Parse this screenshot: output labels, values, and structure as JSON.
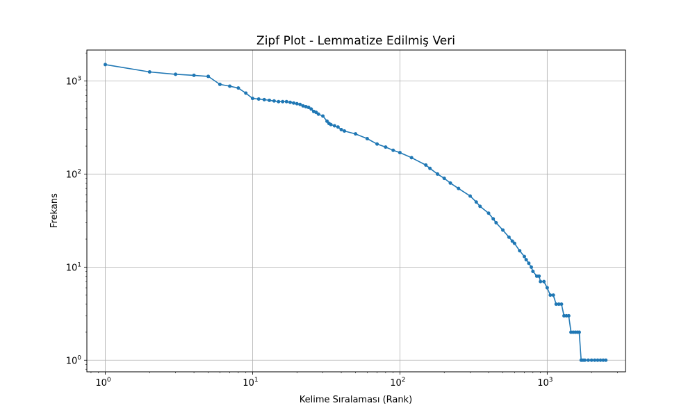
{
  "chart_data": {
    "type": "line",
    "title": "Zipf Plot - Lemmatize Edilmiş Veri",
    "xlabel": "Kelime Sıralaması (Rank)",
    "ylabel": "Frekans",
    "x_scale": "log",
    "y_scale": "log",
    "xlim": [
      0.75,
      3400
    ],
    "ylim": [
      0.75,
      2150
    ],
    "grid": true,
    "marker": "circle",
    "color": "#1f77b4",
    "x_ticks": [
      {
        "value": 1,
        "base": "10",
        "exp": "0"
      },
      {
        "value": 10,
        "base": "10",
        "exp": "1"
      },
      {
        "value": 100,
        "base": "10",
        "exp": "2"
      },
      {
        "value": 1000,
        "base": "10",
        "exp": "3"
      }
    ],
    "y_ticks": [
      {
        "value": 1,
        "base": "10",
        "exp": "0"
      },
      {
        "value": 10,
        "base": "10",
        "exp": "1"
      },
      {
        "value": 100,
        "base": "10",
        "exp": "2"
      },
      {
        "value": 1000,
        "base": "10",
        "exp": "3"
      }
    ],
    "x": [
      1,
      2,
      3,
      4,
      5,
      6,
      7,
      8,
      9,
      10,
      11,
      12,
      13,
      14,
      15,
      16,
      17,
      18,
      19,
      20,
      21,
      22,
      23,
      24,
      25,
      26,
      27,
      28,
      30,
      32,
      33,
      34,
      36,
      38,
      40,
      42,
      50,
      60,
      70,
      80,
      90,
      100,
      120,
      150,
      160,
      180,
      200,
      220,
      250,
      300,
      330,
      350,
      400,
      430,
      450,
      500,
      550,
      580,
      600,
      650,
      700,
      720,
      750,
      780,
      800,
      850,
      880,
      900,
      950,
      1000,
      1050,
      1100,
      1150,
      1200,
      1250,
      1300,
      1350,
      1400,
      1450,
      1500,
      1550,
      1600,
      1650,
      1700,
      1750,
      1800,
      1900,
      2000,
      2100,
      2200,
      2300,
      2400,
      2500
    ],
    "y": [
      1500,
      1250,
      1180,
      1150,
      1120,
      920,
      880,
      840,
      740,
      650,
      640,
      630,
      620,
      610,
      600,
      600,
      600,
      590,
      580,
      570,
      560,
      540,
      530,
      520,
      500,
      470,
      460,
      440,
      420,
      370,
      350,
      340,
      330,
      320,
      300,
      290,
      270,
      240,
      210,
      195,
      180,
      170,
      150,
      125,
      115,
      100,
      90,
      80,
      70,
      58,
      50,
      45,
      38,
      33,
      30,
      25,
      21,
      19,
      18,
      15,
      13,
      12,
      11,
      10,
      9,
      8,
      8,
      7,
      7,
      6,
      5,
      5,
      4,
      4,
      4,
      3,
      3,
      3,
      2,
      2,
      2,
      2,
      2,
      1,
      1,
      1,
      1,
      1,
      1,
      1,
      1,
      1,
      1
    ]
  }
}
